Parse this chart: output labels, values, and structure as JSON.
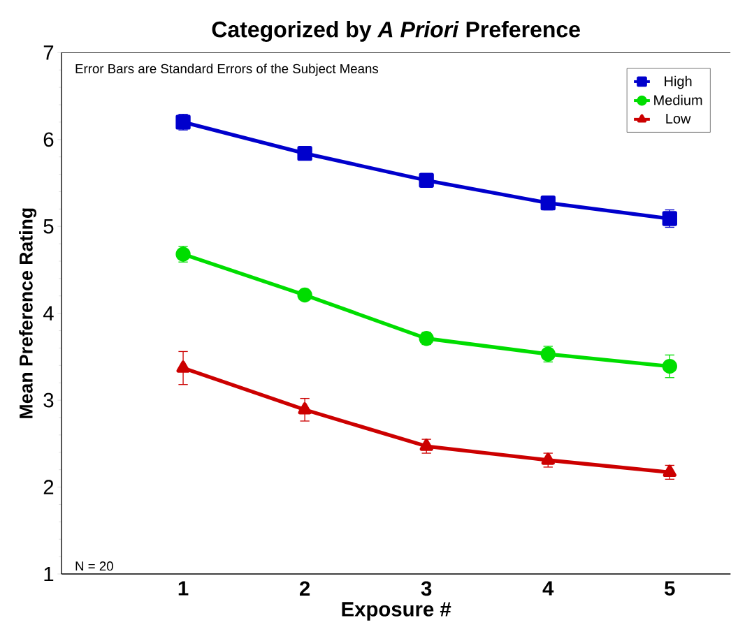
{
  "chart_data": {
    "type": "line",
    "title": "Categorized by *A Priori* Preference",
    "xlabel": "Exposure #",
    "ylabel": "Mean Preference Rating",
    "annotations": [
      "Error Bars are Standard Errors of the Subject Means",
      "N = 20"
    ],
    "x": [
      1,
      2,
      3,
      4,
      5
    ],
    "series": [
      {
        "name": "High",
        "color": "#0000cc",
        "marker": "square",
        "values": [
          6.2,
          5.84,
          5.53,
          5.27,
          5.09
        ],
        "errors": [
          0.09,
          0.06,
          0.07,
          0.08,
          0.1
        ]
      },
      {
        "name": "Medium",
        "color": "#00dd00",
        "marker": "circle",
        "values": [
          4.68,
          4.21,
          3.71,
          3.53,
          3.39
        ],
        "errors": [
          0.09,
          0.03,
          0.07,
          0.09,
          0.13
        ]
      },
      {
        "name": "Low",
        "color": "#cc0000",
        "marker": "triangle",
        "values": [
          3.37,
          2.89,
          2.47,
          2.31,
          2.17
        ],
        "errors": [
          0.19,
          0.13,
          0.08,
          0.08,
          0.08
        ]
      }
    ],
    "xlim": [
      0,
      5.5
    ],
    "ylim": [
      1,
      7
    ],
    "xticks": [
      1,
      2,
      3,
      4,
      5
    ],
    "yticks": [
      1,
      2,
      3,
      4,
      5,
      6,
      7
    ],
    "grid": false,
    "legend": "top right",
    "line_style": "solid"
  }
}
